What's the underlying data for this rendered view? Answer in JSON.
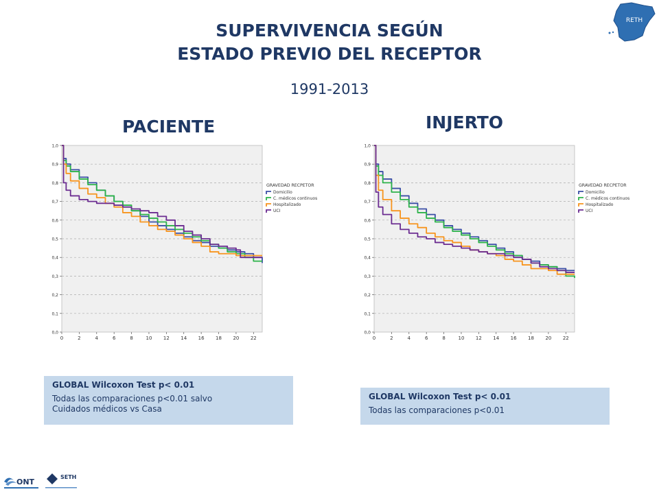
{
  "header": {
    "title_line1": "SUPERVIVENCIA SEGÚN",
    "title_line2": "ESTADO PREVIO DEL RECEPTOR",
    "years": "1991-2013"
  },
  "sections": {
    "left_title": "PACIENTE",
    "right_title": "INJERTO"
  },
  "logos": {
    "map_text": "RETH",
    "ont_text": "ONT",
    "seth_text": "SETH"
  },
  "colors": {
    "title": "#1F3864",
    "plot_background": "#F0F0F0",
    "stats_box": "#C5D8EB",
    "domicilio": "#3A4EA5",
    "c_medicos": "#2DB34A",
    "hospitalizado": "#F7941D",
    "uci": "#6B2C91"
  },
  "stats": {
    "left": {
      "head": "GLOBAL Wilcoxon Test  p< 0.01",
      "line1": "Todas las comparaciones p<0.01 salvo",
      "line2": "Cuidados médicos vs Casa"
    },
    "right": {
      "head": "GLOBAL Wilcoxon Test  p< 0.01",
      "line1": "Todas las comparaciones p<0.01"
    }
  },
  "chart_data": [
    {
      "type": "line",
      "panel": "PACIENTE",
      "xlim": [
        0,
        23
      ],
      "ylim": [
        0,
        1
      ],
      "grid": true,
      "legend_position": "right",
      "legend_title": "GRAVEDAD RECPETOR",
      "x_ticks": [
        "0",
        "2",
        "4",
        "6",
        "8",
        "10",
        "12",
        "14",
        "16",
        "18",
        "20",
        "22"
      ],
      "y_ticks": [
        "0,0",
        "0,1",
        "0,2",
        "0,3",
        "0,4",
        "0,5",
        "0,6",
        "0,7",
        "0,8",
        "0,9",
        "1,0"
      ],
      "series": [
        {
          "name": "Domicilio",
          "color": "#3A4EA5",
          "points": [
            [
              0,
              1.0
            ],
            [
              0.2,
              0.93
            ],
            [
              0.5,
              0.9
            ],
            [
              1,
              0.87
            ],
            [
              2,
              0.83
            ],
            [
              3,
              0.8
            ],
            [
              4,
              0.76
            ],
            [
              5,
              0.73
            ],
            [
              6,
              0.7
            ],
            [
              7,
              0.67
            ],
            [
              8,
              0.65
            ],
            [
              9,
              0.62
            ],
            [
              10,
              0.59
            ],
            [
              11,
              0.57
            ],
            [
              12,
              0.55
            ],
            [
              13,
              0.53
            ],
            [
              14,
              0.51
            ],
            [
              15,
              0.49
            ],
            [
              16,
              0.48
            ],
            [
              17,
              0.46
            ],
            [
              18,
              0.45
            ],
            [
              19,
              0.44
            ],
            [
              20,
              0.43
            ],
            [
              21,
              0.42
            ],
            [
              22,
              0.4
            ],
            [
              23,
              0.37
            ]
          ]
        },
        {
          "name": "C. médicos continuos",
          "color": "#2DB34A",
          "points": [
            [
              0,
              1.0
            ],
            [
              0.2,
              0.92
            ],
            [
              0.5,
              0.89
            ],
            [
              1,
              0.86
            ],
            [
              2,
              0.82
            ],
            [
              3,
              0.79
            ],
            [
              4,
              0.76
            ],
            [
              5,
              0.73
            ],
            [
              6,
              0.7
            ],
            [
              7,
              0.68
            ],
            [
              8,
              0.65
            ],
            [
              9,
              0.63
            ],
            [
              10,
              0.61
            ],
            [
              11,
              0.59
            ],
            [
              12,
              0.57
            ],
            [
              13,
              0.55
            ],
            [
              14,
              0.53
            ],
            [
              15,
              0.51
            ],
            [
              16,
              0.49
            ],
            [
              17,
              0.47
            ],
            [
              18,
              0.45
            ],
            [
              19,
              0.43
            ],
            [
              20,
              0.42
            ],
            [
              21,
              0.4
            ],
            [
              22,
              0.38
            ],
            [
              23,
              0.38
            ]
          ]
        },
        {
          "name": "Hospitalizado",
          "color": "#F7941D",
          "points": [
            [
              0,
              1.0
            ],
            [
              0.2,
              0.9
            ],
            [
              0.5,
              0.85
            ],
            [
              1,
              0.81
            ],
            [
              2,
              0.77
            ],
            [
              3,
              0.74
            ],
            [
              4,
              0.72
            ],
            [
              5,
              0.69
            ],
            [
              6,
              0.67
            ],
            [
              7,
              0.64
            ],
            [
              8,
              0.62
            ],
            [
              9,
              0.59
            ],
            [
              10,
              0.57
            ],
            [
              11,
              0.55
            ],
            [
              12,
              0.54
            ],
            [
              13,
              0.52
            ],
            [
              14,
              0.5
            ],
            [
              15,
              0.48
            ],
            [
              16,
              0.46
            ],
            [
              17,
              0.43
            ],
            [
              18,
              0.42
            ],
            [
              19,
              0.42
            ],
            [
              20,
              0.41
            ],
            [
              21,
              0.41
            ],
            [
              22,
              0.41
            ],
            [
              23,
              0.41
            ]
          ]
        },
        {
          "name": "UCI",
          "color": "#6B2C91",
          "points": [
            [
              0,
              1.0
            ],
            [
              0.2,
              0.8
            ],
            [
              0.5,
              0.76
            ],
            [
              1,
              0.73
            ],
            [
              2,
              0.71
            ],
            [
              3,
              0.7
            ],
            [
              4,
              0.69
            ],
            [
              5,
              0.69
            ],
            [
              6,
              0.68
            ],
            [
              7,
              0.67
            ],
            [
              8,
              0.66
            ],
            [
              9,
              0.65
            ],
            [
              10,
              0.64
            ],
            [
              11,
              0.62
            ],
            [
              12,
              0.6
            ],
            [
              13,
              0.57
            ],
            [
              14,
              0.54
            ],
            [
              15,
              0.52
            ],
            [
              16,
              0.5
            ],
            [
              17,
              0.47
            ],
            [
              18,
              0.46
            ],
            [
              19,
              0.45
            ],
            [
              20,
              0.44
            ],
            [
              20.5,
              0.4
            ],
            [
              21,
              0.4
            ],
            [
              22,
              0.4
            ],
            [
              23,
              0.4
            ]
          ]
        }
      ]
    },
    {
      "type": "line",
      "panel": "INJERTO",
      "xlim": [
        0,
        23
      ],
      "ylim": [
        0,
        1
      ],
      "grid": true,
      "legend_position": "right",
      "legend_title": "GRAVEDAD RECPETOR",
      "x_ticks": [
        "0",
        "2",
        "4",
        "6",
        "8",
        "10",
        "12",
        "14",
        "16",
        "18",
        "20",
        "22"
      ],
      "y_ticks": [
        "0,0",
        "0,1",
        "0,2",
        "0,3",
        "0,4",
        "0,5",
        "0,6",
        "0,7",
        "0,8",
        "0,9",
        "1,0"
      ],
      "series": [
        {
          "name": "Domicilio",
          "color": "#3A4EA5",
          "points": [
            [
              0,
              1.0
            ],
            [
              0.2,
              0.9
            ],
            [
              0.5,
              0.86
            ],
            [
              1,
              0.82
            ],
            [
              2,
              0.77
            ],
            [
              3,
              0.73
            ],
            [
              4,
              0.69
            ],
            [
              5,
              0.66
            ],
            [
              6,
              0.63
            ],
            [
              7,
              0.6
            ],
            [
              8,
              0.57
            ],
            [
              9,
              0.55
            ],
            [
              10,
              0.53
            ],
            [
              11,
              0.51
            ],
            [
              12,
              0.49
            ],
            [
              13,
              0.47
            ],
            [
              14,
              0.45
            ],
            [
              15,
              0.43
            ],
            [
              16,
              0.41
            ],
            [
              17,
              0.39
            ],
            [
              18,
              0.38
            ],
            [
              19,
              0.36
            ],
            [
              20,
              0.35
            ],
            [
              21,
              0.34
            ],
            [
              22,
              0.33
            ],
            [
              23,
              0.33
            ]
          ]
        },
        {
          "name": "C. médicos continuos",
          "color": "#2DB34A",
          "points": [
            [
              0,
              1.0
            ],
            [
              0.2,
              0.89
            ],
            [
              0.5,
              0.84
            ],
            [
              1,
              0.8
            ],
            [
              2,
              0.75
            ],
            [
              3,
              0.71
            ],
            [
              4,
              0.67
            ],
            [
              5,
              0.64
            ],
            [
              6,
              0.61
            ],
            [
              7,
              0.59
            ],
            [
              8,
              0.56
            ],
            [
              9,
              0.54
            ],
            [
              10,
              0.52
            ],
            [
              11,
              0.5
            ],
            [
              12,
              0.48
            ],
            [
              13,
              0.46
            ],
            [
              14,
              0.44
            ],
            [
              15,
              0.42
            ],
            [
              16,
              0.41
            ],
            [
              17,
              0.39
            ],
            [
              18,
              0.37
            ],
            [
              19,
              0.36
            ],
            [
              20,
              0.35
            ],
            [
              21,
              0.33
            ],
            [
              22,
              0.3
            ],
            [
              23,
              0.29
            ]
          ]
        },
        {
          "name": "Hospitalizado",
          "color": "#F7941D",
          "points": [
            [
              0,
              1.0
            ],
            [
              0.2,
              0.84
            ],
            [
              0.5,
              0.76
            ],
            [
              1,
              0.71
            ],
            [
              2,
              0.65
            ],
            [
              3,
              0.61
            ],
            [
              4,
              0.58
            ],
            [
              5,
              0.56
            ],
            [
              6,
              0.53
            ],
            [
              7,
              0.51
            ],
            [
              8,
              0.49
            ],
            [
              9,
              0.48
            ],
            [
              10,
              0.46
            ],
            [
              11,
              0.44
            ],
            [
              12,
              0.43
            ],
            [
              13,
              0.42
            ],
            [
              14,
              0.41
            ],
            [
              15,
              0.39
            ],
            [
              16,
              0.38
            ],
            [
              17,
              0.36
            ],
            [
              18,
              0.34
            ],
            [
              19,
              0.34
            ],
            [
              20,
              0.33
            ],
            [
              21,
              0.31
            ],
            [
              22,
              0.31
            ],
            [
              23,
              0.31
            ]
          ]
        },
        {
          "name": "UCI",
          "color": "#6B2C91",
          "points": [
            [
              0,
              1.0
            ],
            [
              0.2,
              0.75
            ],
            [
              0.5,
              0.67
            ],
            [
              1,
              0.63
            ],
            [
              2,
              0.58
            ],
            [
              3,
              0.55
            ],
            [
              4,
              0.53
            ],
            [
              5,
              0.51
            ],
            [
              6,
              0.5
            ],
            [
              7,
              0.48
            ],
            [
              8,
              0.47
            ],
            [
              9,
              0.46
            ],
            [
              10,
              0.45
            ],
            [
              11,
              0.44
            ],
            [
              12,
              0.43
            ],
            [
              13,
              0.42
            ],
            [
              14,
              0.42
            ],
            [
              15,
              0.41
            ],
            [
              16,
              0.4
            ],
            [
              17,
              0.39
            ],
            [
              18,
              0.37
            ],
            [
              19,
              0.35
            ],
            [
              20,
              0.34
            ],
            [
              21,
              0.33
            ],
            [
              22,
              0.32
            ],
            [
              23,
              0.32
            ]
          ]
        }
      ]
    }
  ]
}
